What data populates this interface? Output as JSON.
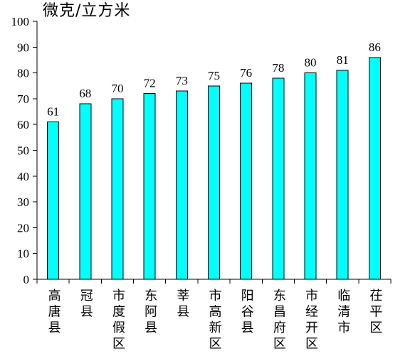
{
  "chart_data": {
    "type": "bar",
    "ylabel": "微克/立方米",
    "categories": [
      "高唐县",
      "冠县",
      "市度假区",
      "东阿县",
      "莘县",
      "市高新区",
      "阳谷县",
      "东昌府区",
      "市经开区",
      "临清市",
      "茌平区"
    ],
    "values": [
      61,
      68,
      70,
      72,
      73,
      75,
      76,
      78,
      80,
      81,
      86
    ],
    "ylim": [
      0,
      100
    ],
    "yticks": [
      0,
      10,
      20,
      30,
      40,
      50,
      60,
      70,
      80,
      90,
      100
    ],
    "data_labels": true,
    "grid": false,
    "legend": "none",
    "colors": {
      "bar": "#00FFFF",
      "outline": "#000000",
      "axis": "#000000"
    }
  }
}
